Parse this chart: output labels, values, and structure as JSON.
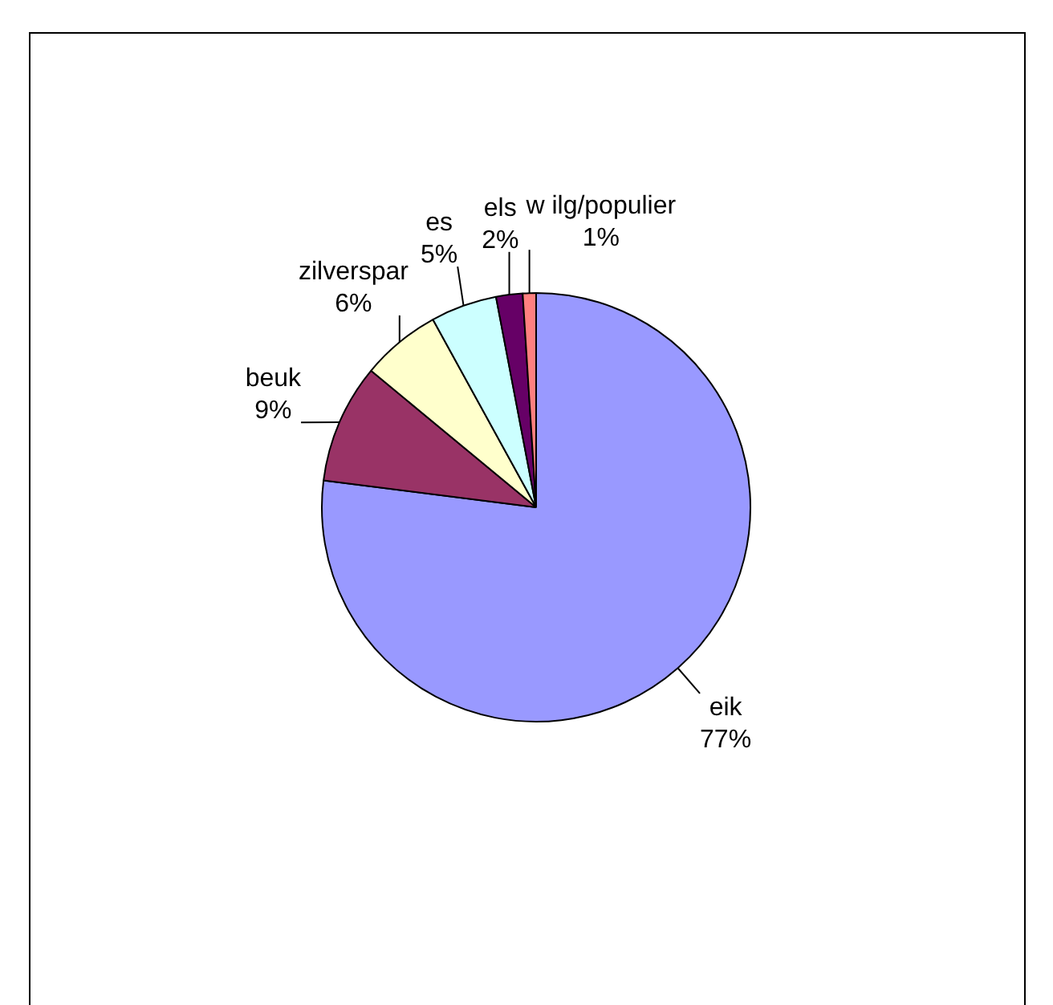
{
  "chart_data": {
    "type": "pie",
    "categories": [
      "eik",
      "beuk",
      "zilverspar",
      "es",
      "els",
      "w ilg/populier"
    ],
    "values": [
      77,
      9,
      6,
      5,
      2,
      1
    ],
    "colors": [
      "#9999ff",
      "#993366",
      "#ffffcc",
      "#ccffff",
      "#660066",
      "#ff8080"
    ],
    "value_labels": [
      "77%",
      "9%",
      "6%",
      "5%",
      "2%",
      "1%"
    ],
    "legend": false
  }
}
